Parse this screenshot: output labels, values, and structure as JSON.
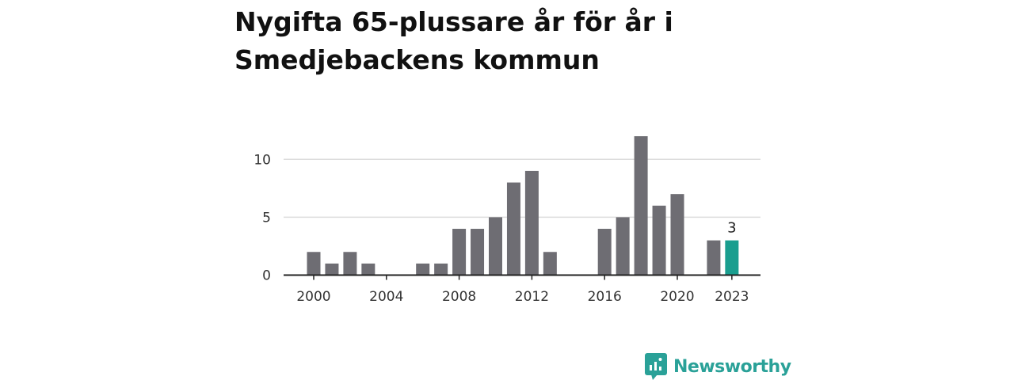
{
  "title": "Nygifta 65-plussare år för år i Smedjebackens kommun",
  "brand": "Newsworthy",
  "colors": {
    "bar": "#6e6d73",
    "highlight": "#1a9e8f",
    "grid": "#dddddd",
    "axis": "#222222",
    "brand": "#2aa198"
  },
  "chart_data": {
    "type": "bar",
    "x": [
      2000,
      2001,
      2002,
      2003,
      2004,
      2005,
      2006,
      2007,
      2008,
      2009,
      2010,
      2011,
      2012,
      2013,
      2014,
      2015,
      2016,
      2017,
      2018,
      2019,
      2020,
      2021,
      2022,
      2023
    ],
    "values": [
      2,
      1,
      2,
      1,
      0,
      0,
      1,
      1,
      4,
      4,
      5,
      8,
      9,
      2,
      0,
      0,
      4,
      5,
      12,
      6,
      7,
      0,
      3,
      3
    ],
    "highlight_index": 23,
    "data_labels": [
      {
        "x": 2023,
        "text": "3"
      }
    ],
    "x_ticks": [
      2000,
      2004,
      2008,
      2012,
      2016,
      2020,
      2023
    ],
    "y_ticks": [
      0,
      5,
      10
    ],
    "ylim": [
      0,
      12
    ],
    "grid": true,
    "legend": "none",
    "xlabel": "",
    "ylabel": ""
  }
}
